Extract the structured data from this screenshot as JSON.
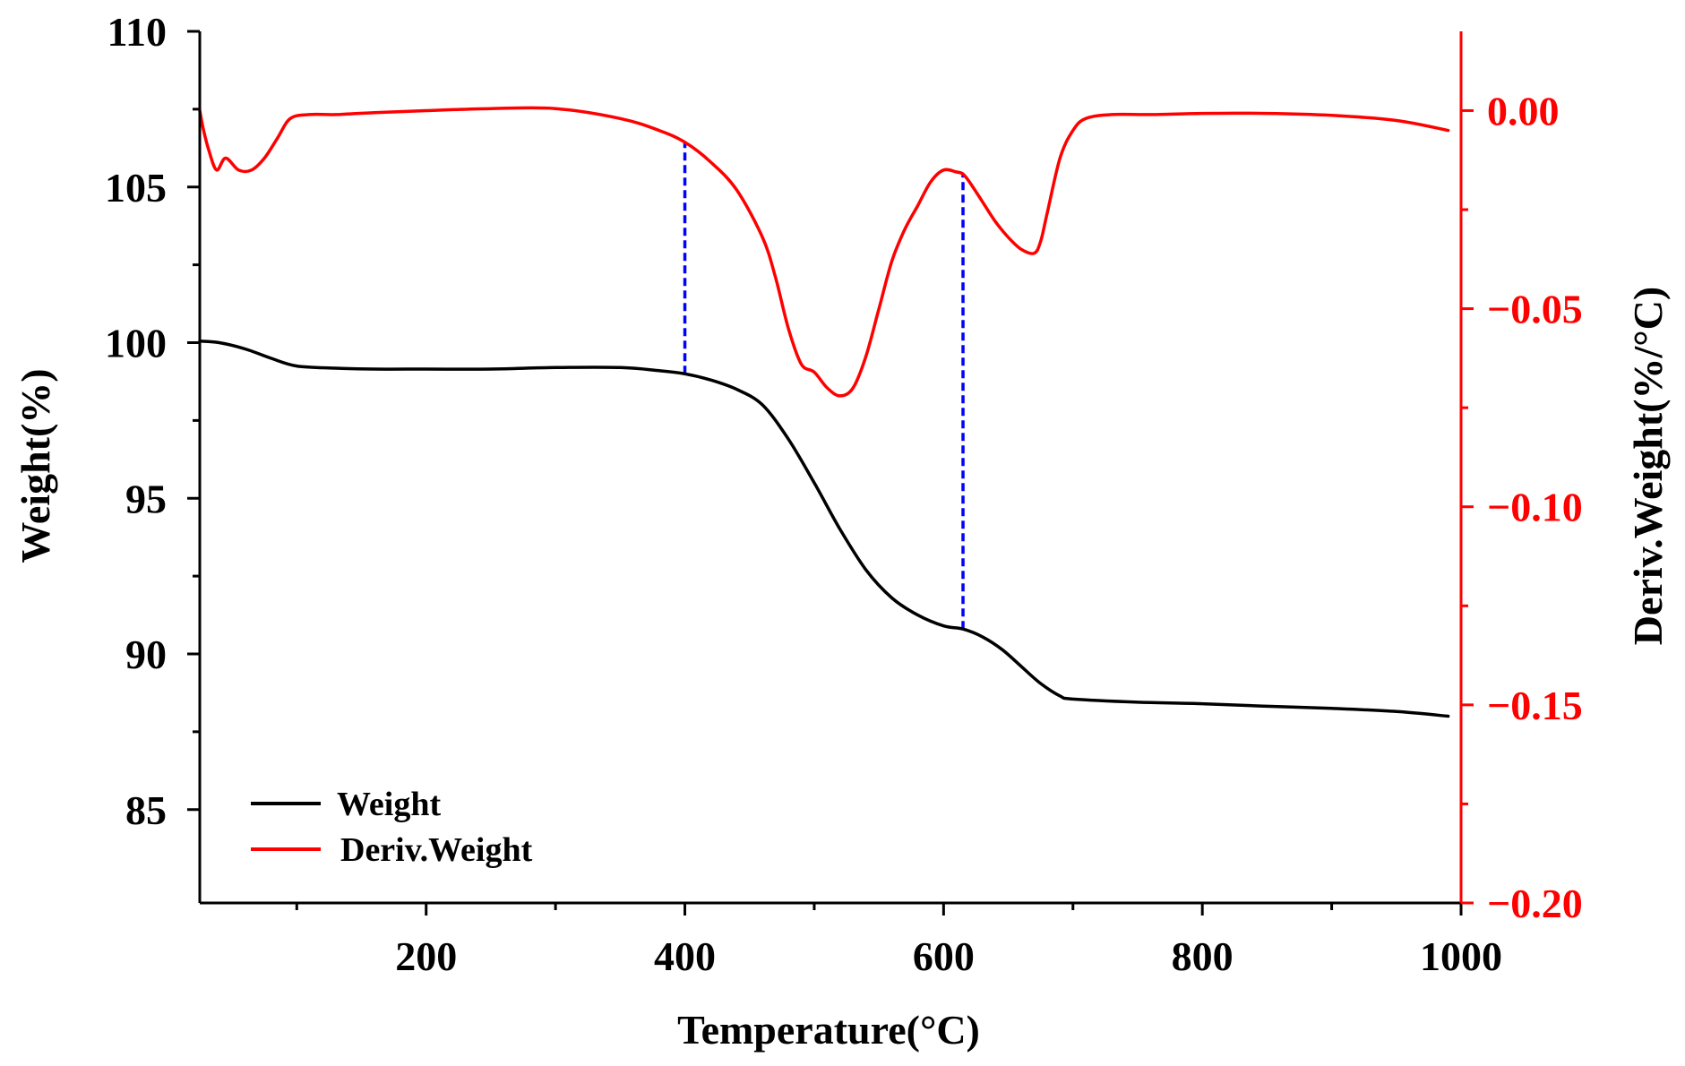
{
  "chart_data": {
    "type": "line",
    "title": "",
    "xlabel": "Temperature(°C)",
    "ylabel": "Weight(%)",
    "y2label": "Deriv.Weight(%/°C)",
    "xlim": [
      25,
      1000
    ],
    "ylim": [
      82,
      110
    ],
    "y2lim": [
      -0.2,
      0.02
    ],
    "x_ticks": [
      200,
      400,
      600,
      800,
      1000
    ],
    "x_tick_labels": [
      "200",
      "400",
      "600",
      "800",
      "1000"
    ],
    "y_ticks": [
      85,
      90,
      95,
      100,
      105,
      110
    ],
    "y_tick_labels": [
      "85",
      "90",
      "95",
      "100",
      "105",
      "110"
    ],
    "y2_ticks": [
      0.0,
      -0.05,
      -0.1,
      -0.15,
      -0.2
    ],
    "y2_tick_labels": [
      "0.00",
      "−0.05",
      "−0.10",
      "−0.15",
      "−0.20"
    ],
    "legend_position": "bottom-left",
    "series": [
      {
        "name": "Weight",
        "axis": "left",
        "color": "#000000",
        "x": [
          25,
          40,
          60,
          80,
          100,
          130,
          160,
          200,
          250,
          300,
          350,
          380,
          400,
          420,
          440,
          460,
          480,
          500,
          520,
          540,
          560,
          580,
          600,
          615,
          630,
          645,
          660,
          675,
          690,
          700,
          750,
          800,
          850,
          900,
          950,
          990
        ],
        "y": [
          100.05,
          100.0,
          99.8,
          99.5,
          99.25,
          99.18,
          99.15,
          99.15,
          99.15,
          99.2,
          99.2,
          99.1,
          99.0,
          98.8,
          98.5,
          98.0,
          96.9,
          95.5,
          94.0,
          92.7,
          91.8,
          91.25,
          90.9,
          90.8,
          90.55,
          90.15,
          89.6,
          89.05,
          88.65,
          88.55,
          88.45,
          88.4,
          88.32,
          88.25,
          88.15,
          88.0
        ]
      },
      {
        "name": "Deriv.Weight",
        "axis": "right",
        "color": "#ff0000",
        "x": [
          25,
          28,
          32,
          38,
          45,
          55,
          65,
          75,
          85,
          95,
          110,
          130,
          160,
          200,
          250,
          300,
          350,
          380,
          400,
          420,
          440,
          460,
          470,
          480,
          490,
          500,
          510,
          520,
          530,
          540,
          550,
          560,
          570,
          580,
          590,
          600,
          610,
          615,
          620,
          630,
          640,
          650,
          660,
          670,
          675,
          680,
          690,
          700,
          710,
          730,
          760,
          800,
          850,
          900,
          950,
          990
        ],
        "y": [
          0.0,
          -0.005,
          -0.01,
          -0.015,
          -0.012,
          -0.015,
          -0.015,
          -0.012,
          -0.007,
          -0.002,
          -0.001,
          -0.001,
          -0.0005,
          0.0,
          0.0005,
          0.0005,
          -0.002,
          -0.005,
          -0.008,
          -0.013,
          -0.02,
          -0.032,
          -0.042,
          -0.055,
          -0.064,
          -0.066,
          -0.07,
          -0.072,
          -0.07,
          -0.062,
          -0.05,
          -0.038,
          -0.03,
          -0.024,
          -0.018,
          -0.015,
          -0.0155,
          -0.016,
          -0.018,
          -0.023,
          -0.028,
          -0.032,
          -0.035,
          -0.036,
          -0.033,
          -0.026,
          -0.012,
          -0.005,
          -0.002,
          -0.001,
          -0.001,
          -0.0007,
          -0.0007,
          -0.0012,
          -0.0025,
          -0.005
        ]
      }
    ],
    "annotations": [
      {
        "type": "vertical-dashed-line",
        "color": "#0000ff",
        "x": 400,
        "from_series": "Weight",
        "to_series": "Deriv.Weight"
      },
      {
        "type": "vertical-dashed-line",
        "color": "#0000ff",
        "x": 615,
        "from_series": "Weight",
        "to_series": "Deriv.Weight"
      }
    ]
  },
  "legend": {
    "items": [
      {
        "label": "Weight",
        "color": "#000000"
      },
      {
        "label": "Deriv.Weight",
        "color": "#ff0000"
      }
    ]
  }
}
